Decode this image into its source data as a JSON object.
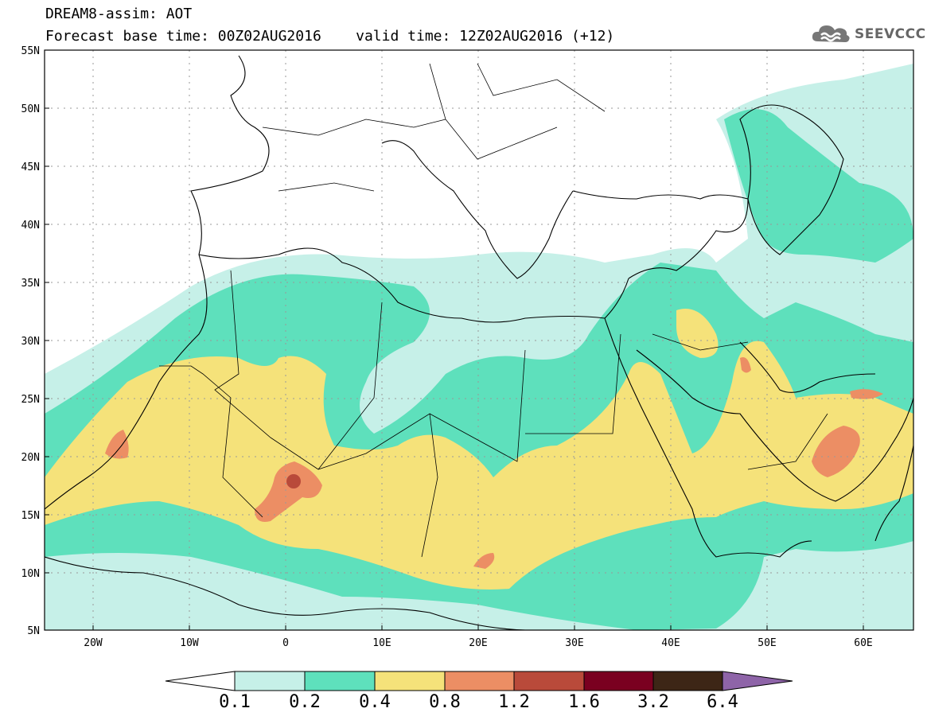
{
  "header": {
    "line1": "DREAM8-assim: AOT",
    "line2": "Forecast base time: 00Z02AUG2016    valid time: 12Z02AUG2016 (+12)",
    "brand": "SEEVCCC",
    "brand_icon": "cloud-logo-icon"
  },
  "map": {
    "lat_labels": [
      "55N",
      "50N",
      "45N",
      "40N",
      "35N",
      "30N",
      "25N",
      "20N",
      "15N",
      "10N",
      "5N"
    ],
    "lon_labels": [
      "20W",
      "10W",
      "0",
      "10E",
      "20E",
      "30E",
      "40E",
      "50E",
      "60E"
    ],
    "lat_range": [
      5,
      55
    ],
    "lon_range": [
      -25,
      65
    ],
    "gridlines": "dotted"
  },
  "colorbar": {
    "labels": [
      "0.1",
      "0.2",
      "0.4",
      "0.8",
      "1.2",
      "1.6",
      "3.2",
      "6.4"
    ],
    "colors": [
      "#ffffff",
      "#c6f0e8",
      "#5ee0bc",
      "#f5e27a",
      "#ec8e64",
      "#b94a3a",
      "#7a0020",
      "#3d2616",
      "#8e64a8"
    ]
  },
  "chart_data": {
    "type": "heatmap",
    "variable": "AOT",
    "levels": [
      0.1,
      0.2,
      0.4,
      0.8,
      1.2,
      1.6,
      3.2,
      6.4
    ],
    "region": {
      "lat": [
        5,
        55
      ],
      "lon": [
        -25,
        65
      ]
    }
  }
}
